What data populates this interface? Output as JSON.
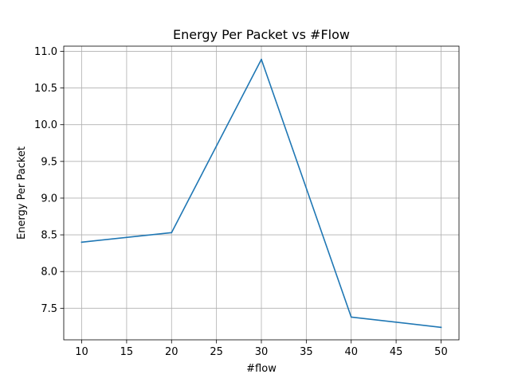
{
  "chart_data": {
    "type": "line",
    "title": "Energy Per Packet vs #Flow",
    "xlabel": "#flow",
    "ylabel": "Energy Per Packet",
    "x": [
      10,
      20,
      30,
      40,
      50
    ],
    "series": [
      {
        "values": [
          8.4,
          8.53,
          10.89,
          7.38,
          7.24
        ],
        "color": "#1f77b4"
      }
    ],
    "xlim": [
      8,
      52
    ],
    "ylim": [
      7.07,
      11.07
    ],
    "xticks": [
      10,
      15,
      20,
      25,
      30,
      35,
      40,
      45,
      50
    ],
    "xtick_labels": [
      "10",
      "15",
      "20",
      "25",
      "30",
      "35",
      "40",
      "45",
      "50"
    ],
    "yticks": [
      7.5,
      8.0,
      8.5,
      9.0,
      9.5,
      10.0,
      10.5,
      11.0
    ],
    "ytick_labels": [
      "7.5",
      "8.0",
      "8.5",
      "9.0",
      "9.5",
      "10.0",
      "10.5",
      "11.0"
    ],
    "grid": true,
    "legend": "none"
  }
}
